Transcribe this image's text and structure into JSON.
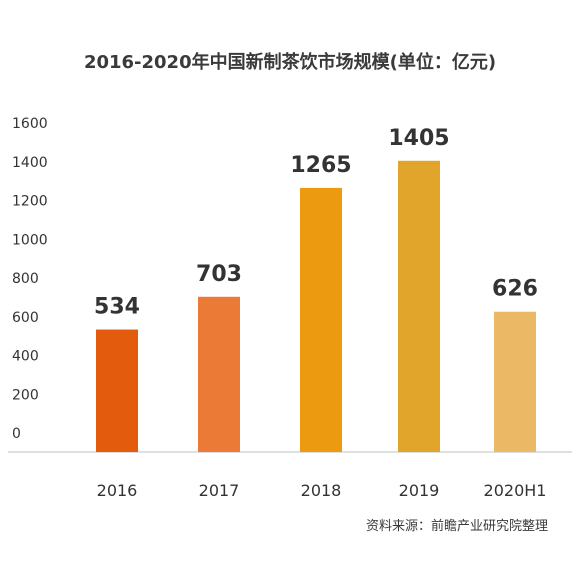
{
  "chart_data": {
    "type": "bar",
    "title": "2016-2020年中国新制茶饮市场规模(单位：亿元)",
    "categories": [
      "2016",
      "2017",
      "2018",
      "2019",
      "2020H1"
    ],
    "values": [
      534,
      703,
      1265,
      1405,
      626
    ],
    "data_labels": [
      "534",
      "703",
      "1265",
      "1405",
      "626"
    ],
    "bar_colors": [
      "#e35c0e",
      "#ea7a36",
      "#ec9a10",
      "#e1a52c",
      "#ebb965"
    ],
    "ylim": [
      0,
      1600
    ],
    "yticks": [
      0,
      200,
      400,
      600,
      800,
      1000,
      1200,
      1400,
      1600
    ],
    "ytick_labels": [
      "0",
      "200",
      "400",
      "600",
      "800",
      "1000",
      "1200",
      "1400",
      "1600"
    ],
    "xlabel": "",
    "ylabel": "",
    "grid": false,
    "legend": "none"
  },
  "source_note": "资料来源：前瞻产业研究院整理"
}
